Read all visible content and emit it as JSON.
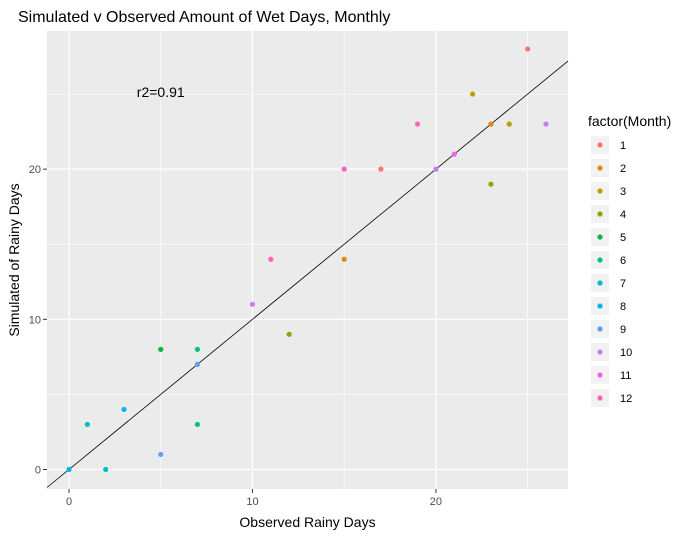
{
  "chart_data": {
    "type": "scatter",
    "title": "Simulated v Observed Amount of Wet Days, Monthly",
    "xlabel": "Observed Rainy Days",
    "ylabel": "Simulated of Rainy Days",
    "xlim": [
      -1.2,
      27.2
    ],
    "ylim": [
      -1.3,
      29.2
    ],
    "x_ticks": [
      0,
      10,
      20
    ],
    "y_ticks": [
      0,
      10,
      20
    ],
    "x_tick_labels": [
      "0",
      "10",
      "20"
    ],
    "y_tick_labels": [
      "0",
      "10",
      "20"
    ],
    "grid": true,
    "annotation": {
      "text": "r2=0.91",
      "x": 5,
      "y": 24.8
    },
    "reference_line": {
      "type": "identity",
      "slope": 1,
      "intercept": 0,
      "color": "#000000"
    },
    "legend": {
      "title": "factor(Month)",
      "placement": "right",
      "entries": [
        {
          "label": "1",
          "color": "#F8766D"
        },
        {
          "label": "2",
          "color": "#DE8C00"
        },
        {
          "label": "3",
          "color": "#B79F00"
        },
        {
          "label": "4",
          "color": "#7CAE00"
        },
        {
          "label": "5",
          "color": "#00BA38"
        },
        {
          "label": "6",
          "color": "#00C08B"
        },
        {
          "label": "7",
          "color": "#00BFC4"
        },
        {
          "label": "8",
          "color": "#00B4F0"
        },
        {
          "label": "9",
          "color": "#619CFF"
        },
        {
          "label": "10",
          "color": "#C77CFF"
        },
        {
          "label": "11",
          "color": "#F564E3"
        },
        {
          "label": "12",
          "color": "#FF64B0"
        }
      ]
    },
    "points": [
      {
        "month": "1",
        "x": 17,
        "y": 20
      },
      {
        "month": "1",
        "x": 25,
        "y": 28
      },
      {
        "month": "2",
        "x": 15,
        "y": 14
      },
      {
        "month": "2",
        "x": 23,
        "y": 23
      },
      {
        "month": "3",
        "x": 22,
        "y": 25
      },
      {
        "month": "3",
        "x": 24,
        "y": 23
      },
      {
        "month": "4",
        "x": 12,
        "y": 9
      },
      {
        "month": "4",
        "x": 23,
        "y": 19
      },
      {
        "month": "5",
        "x": 5,
        "y": 8
      },
      {
        "month": "6",
        "x": 7,
        "y": 8
      },
      {
        "month": "6",
        "x": 7,
        "y": 3
      },
      {
        "month": "7",
        "x": 1,
        "y": 3
      },
      {
        "month": "7",
        "x": 2,
        "y": 0
      },
      {
        "month": "8",
        "x": 0,
        "y": 0
      },
      {
        "month": "8",
        "x": 3,
        "y": 4
      },
      {
        "month": "9",
        "x": 5,
        "y": 1
      },
      {
        "month": "9",
        "x": 7,
        "y": 7
      },
      {
        "month": "10",
        "x": 10,
        "y": 11
      },
      {
        "month": "10",
        "x": 26,
        "y": 23
      },
      {
        "month": "10",
        "x": 20,
        "y": 20
      },
      {
        "month": "11",
        "x": 21,
        "y": 21
      },
      {
        "month": "12",
        "x": 11,
        "y": 14
      },
      {
        "month": "12",
        "x": 15,
        "y": 20
      },
      {
        "month": "12",
        "x": 19,
        "y": 23
      }
    ]
  }
}
